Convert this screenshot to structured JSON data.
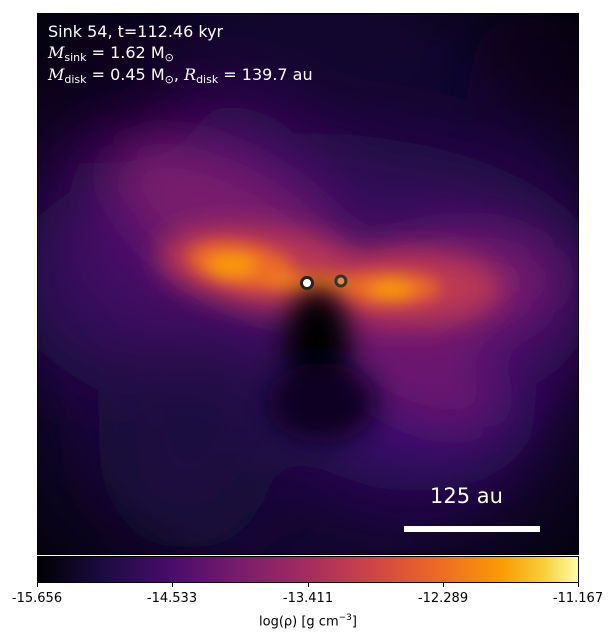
{
  "annotation": {
    "title": "Sink 54, t=112.46 kyr",
    "m_sink_symbol": "M",
    "m_sink_sub": "sink",
    "m_sink_value": " = 1.62 M",
    "m_sink_unit_sub": "⊙",
    "m_disk_symbol": "M",
    "m_disk_sub": "disk",
    "m_disk_value": " = 0.45 M",
    "m_disk_unit_sub": "⊙",
    "separator": ", ",
    "r_disk_symbol": "R",
    "r_disk_sub": "disk",
    "r_disk_value": " = 139.7 au"
  },
  "scalebar": {
    "label": "125 au"
  },
  "colorbar": {
    "colormap": "inferno",
    "ticks": [
      "-15.656",
      "-14.533",
      "-13.411",
      "-12.289",
      "-11.167"
    ],
    "label_main": "log(ρ) [g cm",
    "label_sup": "−3",
    "label_end": "]"
  },
  "colors": {
    "background_dark": "#12062e",
    "disk_bright": "#fb9b06",
    "envelope": "#781c6d",
    "sink_marker_edge": "#222222"
  }
}
